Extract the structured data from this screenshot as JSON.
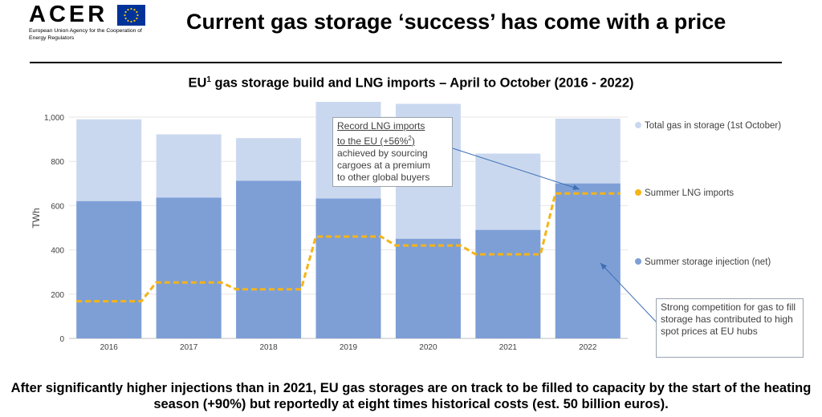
{
  "header": {
    "logo": "ACER",
    "agency_name": "European Union Agency for the Cooperation of Energy Regulators",
    "title": "Current gas storage ‘success’ has come with a price"
  },
  "chart_title": {
    "main": "EU",
    "superscript": "1",
    "rest": " gas storage build and LNG imports – April to October (2016 - 2022)"
  },
  "chart_data": {
    "type": "bar",
    "categories": [
      "2016",
      "2017",
      "2018",
      "2019",
      "2020",
      "2021",
      "2022"
    ],
    "series": [
      {
        "name": "Summer storage injection (net)",
        "kind": "bar",
        "values": [
          620,
          636,
          712,
          632,
          450,
          490,
          700
        ]
      },
      {
        "name": "Total gas in storage (1st October)",
        "kind": "bar",
        "values": [
          990,
          922,
          905,
          1100,
          1060,
          835,
          993
        ]
      },
      {
        "name": "Summer LNG imports",
        "kind": "step-line",
        "values": [
          168,
          253,
          222,
          460,
          420,
          380,
          655
        ]
      }
    ],
    "ylabel": "TWh",
    "yticks": [
      "0",
      "200",
      "400",
      "600",
      "800",
      "1,000"
    ],
    "ylim": [
      0,
      1000
    ],
    "colors": {
      "total": "#cad8ef",
      "injection": "#7e9fd6",
      "lng": "#f5b417"
    }
  },
  "legend": [
    {
      "label": "Total gas in storage (1st October)",
      "color": "#cad8ef"
    },
    {
      "label": "Summer LNG imports",
      "color": "#f5b417"
    },
    {
      "label": "Summer storage injection (net)",
      "color": "#7e9fd6"
    }
  ],
  "callouts": {
    "lng": {
      "line1": "Record LNG imports",
      "line2_pre": "to the EU (+56%",
      "line2_sup": "2",
      "line2_post": ")",
      "line3": "achieved by sourcing",
      "line4": "cargoes at a premium",
      "line5": "to other global buyers"
    },
    "competition": {
      "text": "Strong competition for gas to fill storage has contributed to high spot prices at EU hubs"
    }
  },
  "bottom_text": "After significantly higher injections than in 2021, EU gas storages are on track to be filled to capacity by the start of the heating season (+90%) but reportedly at eight times historical costs (est. 50 billion euros)."
}
